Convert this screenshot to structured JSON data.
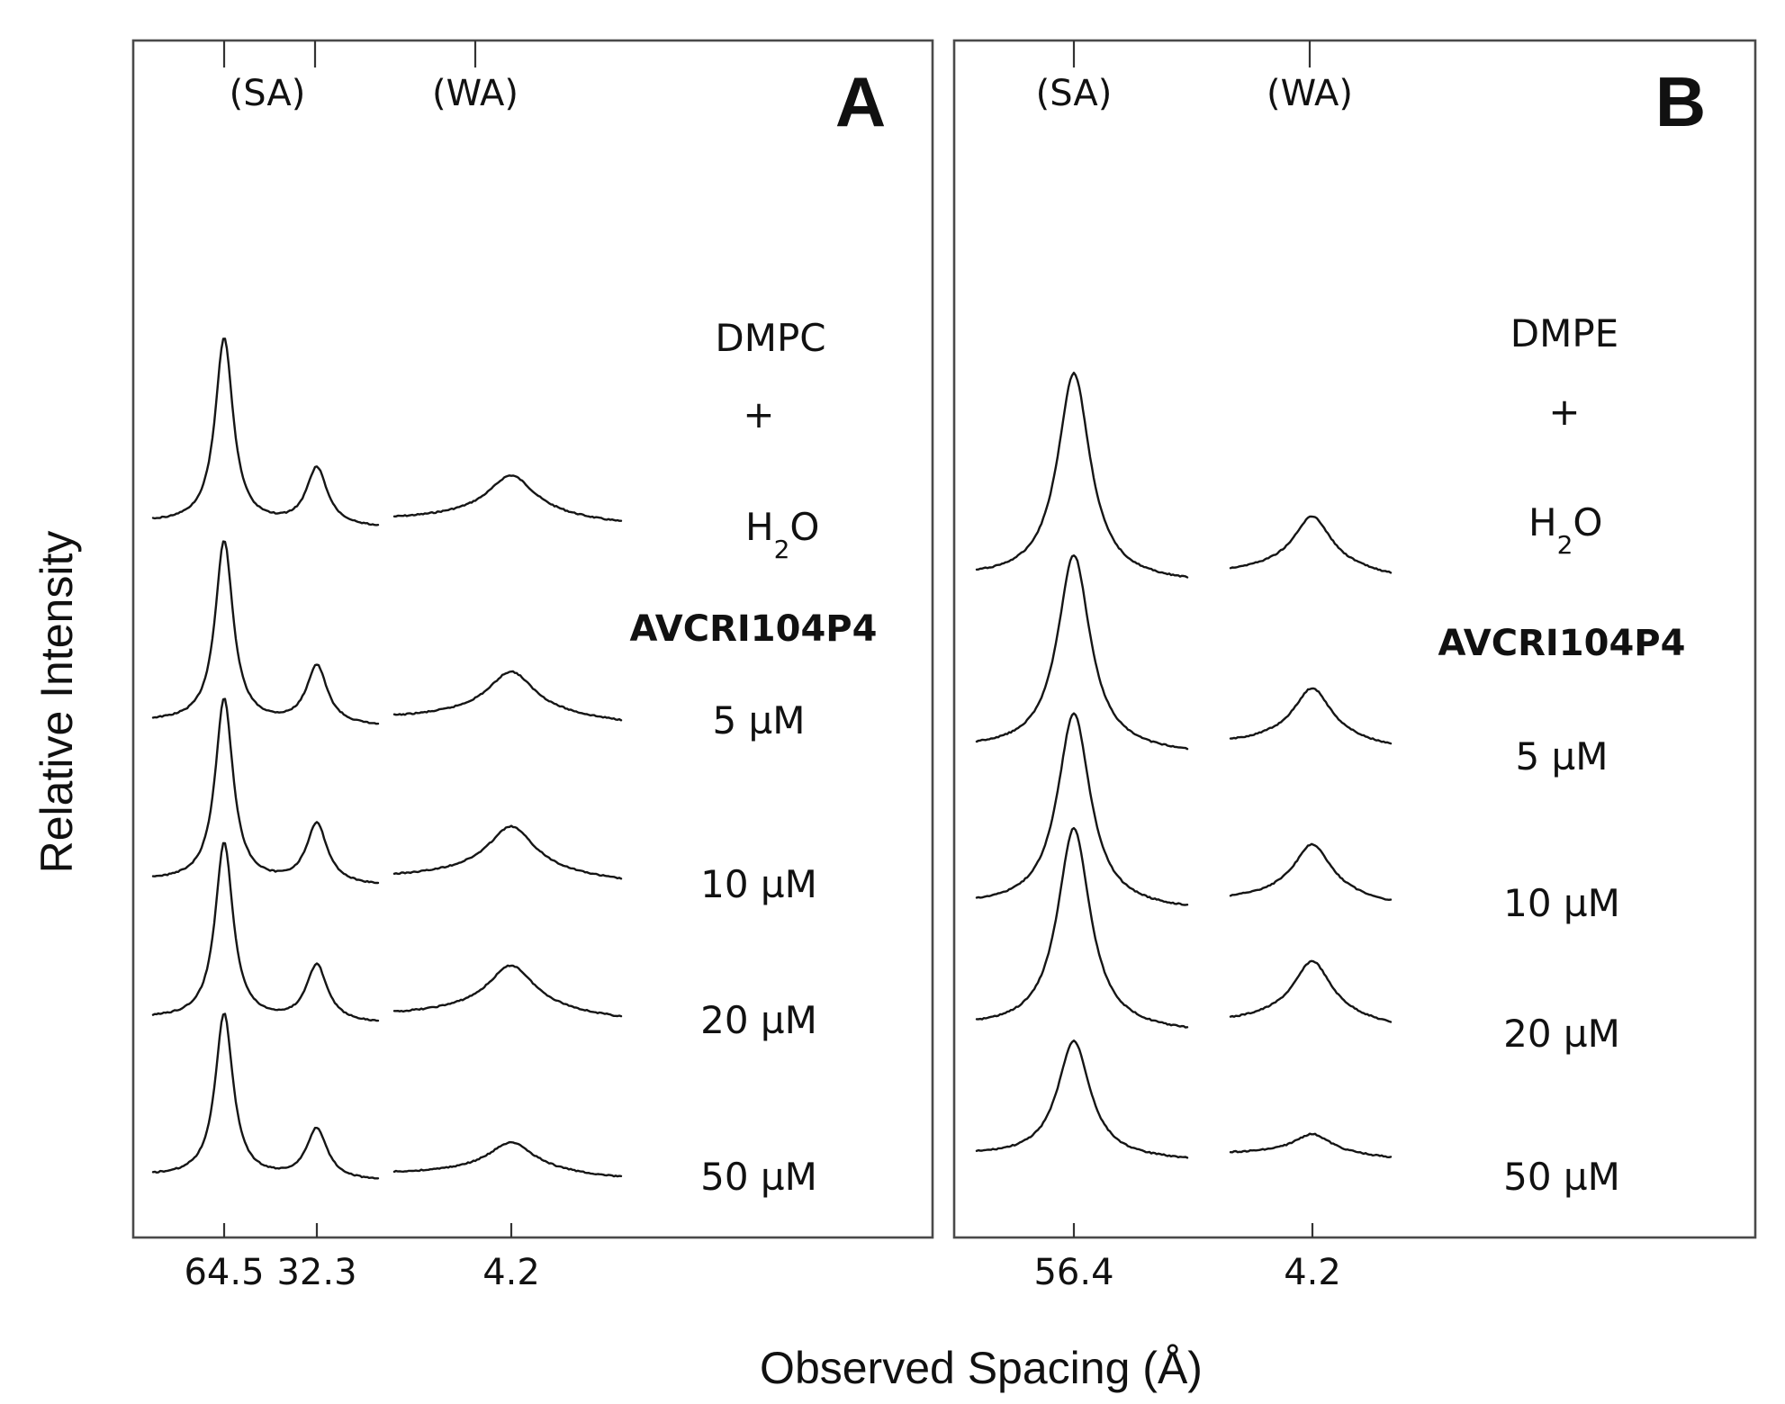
{
  "chart_data": [
    {
      "panel": "A",
      "type": "line",
      "x_ticks": [
        "64.5",
        "32.3",
        "4.2"
      ],
      "regions": [
        "(SA)",
        "(WA)"
      ],
      "labels": {
        "line1": "DMPC",
        "line2": "+",
        "line3": "H",
        "line3_sub": "2",
        "line3_tail": "O",
        "peptide": "AVCRI104P4"
      },
      "series": [
        {
          "name": "DMPC + H2O",
          "label": "",
          "peaks": [
            1.0,
            0.31,
            0.2
          ]
        },
        {
          "name": "5 µM",
          "label": "5 µM",
          "peaks": [
            0.93,
            0.3,
            0.2
          ]
        },
        {
          "name": "10 µM",
          "label": "10 µM",
          "peaks": [
            0.95,
            0.31,
            0.22
          ]
        },
        {
          "name": "20 µM",
          "label": "20 µM",
          "peaks": [
            0.94,
            0.3,
            0.22
          ]
        },
        {
          "name": "50 µM",
          "label": "50 µM",
          "peaks": [
            0.91,
            0.28,
            0.15
          ]
        }
      ]
    },
    {
      "panel": "B",
      "type": "line",
      "x_ticks": [
        "56.4",
        "4.2"
      ],
      "regions": [
        "(SA)",
        "(WA)"
      ],
      "labels": {
        "line1": "DMPE",
        "line2": "+",
        "line3": "H",
        "line3_sub": "2",
        "line3_tail": "O",
        "peptide": "AVCRI104P4"
      },
      "series": [
        {
          "name": "DMPE + H2O",
          "label": "",
          "peaks": [
            1.0,
            0.23
          ]
        },
        {
          "name": "5 µM",
          "label": "5 µM",
          "peaks": [
            1.0,
            0.24
          ]
        },
        {
          "name": "10 µM",
          "label": "10 µM",
          "peaks": [
            1.03,
            0.25
          ]
        },
        {
          "name": "20 µM",
          "label": "20 µM",
          "peaks": [
            1.02,
            0.26
          ]
        },
        {
          "name": "50 µM",
          "label": "50 µM",
          "peaks": [
            0.65,
            0.1
          ]
        }
      ]
    }
  ],
  "axis": {
    "xlabel": "Observed Spacing (Å)",
    "ylabel": "Relative Intensity"
  },
  "panel_letters": [
    "A",
    "B"
  ]
}
